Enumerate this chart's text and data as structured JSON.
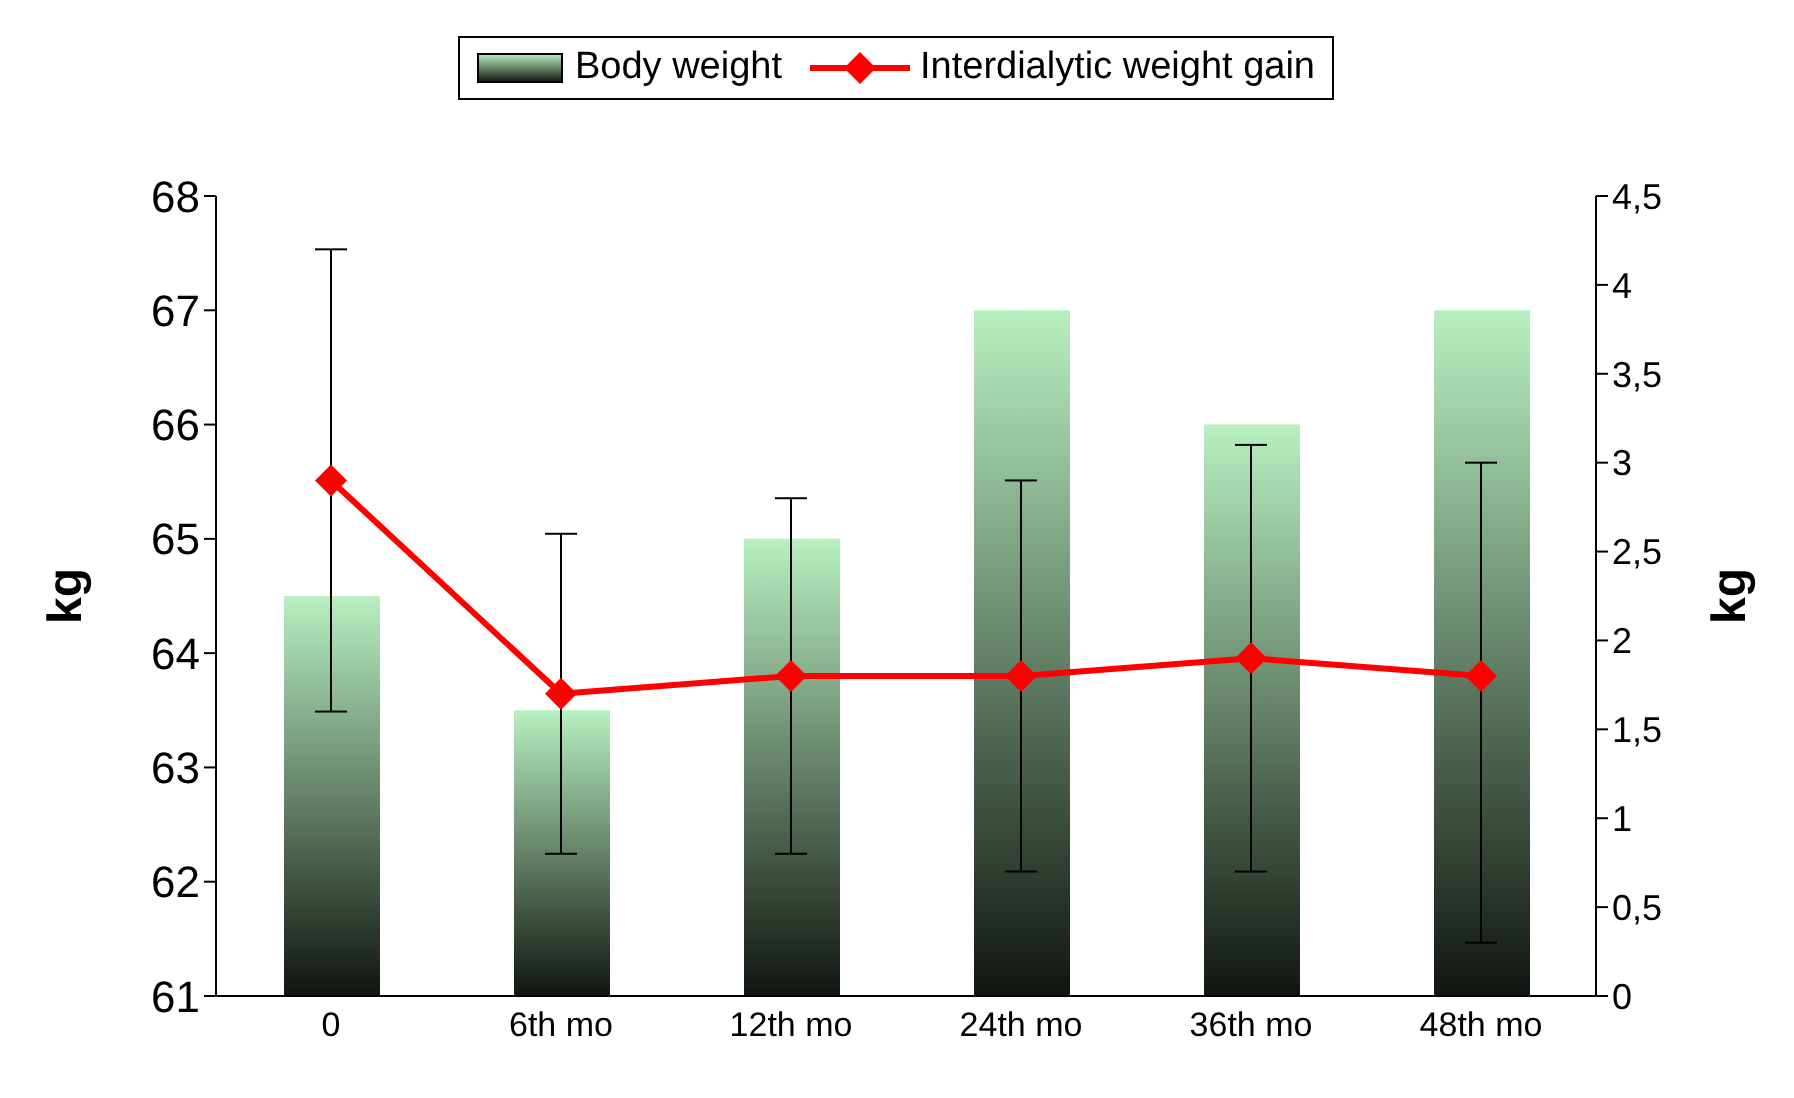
{
  "chart_data": {
    "type": "bar",
    "categories": [
      "0",
      "6th mo",
      "12th mo",
      "24th mo",
      "36th mo",
      "48th mo"
    ],
    "ylabel": "kg",
    "y2label": "kg",
    "ylim": [
      61,
      68
    ],
    "yticks": [
      61,
      62,
      63,
      64,
      65,
      66,
      67,
      68
    ],
    "y2lim": [
      0,
      4.5
    ],
    "y2ticks": [
      0,
      {
        "value": 0.5,
        "label": "0,5"
      },
      1,
      {
        "value": 1.5,
        "label": "1,5"
      },
      2,
      {
        "value": 2.5,
        "label": "2,5"
      },
      3,
      {
        "value": 3.5,
        "label": "3,5"
      },
      4,
      {
        "value": 4.5,
        "label": "4,5"
      }
    ],
    "legend": "top",
    "grid": false,
    "marker": "diamond",
    "series": [
      {
        "name": "Body weight",
        "color": "#b8f0c0",
        "values": [
          64.5,
          63.5,
          65,
          67,
          66,
          67
        ]
      },
      {
        "name": "Interdialytic weight gain",
        "type": "line",
        "axis": "y2",
        "color": "#ff0000",
        "values": [
          2.9,
          1.7,
          1.8,
          1.8,
          1.9,
          1.8
        ],
        "errors": [
          1.3,
          0.9,
          1.0,
          1.1,
          1.2,
          [
            0.3,
            3.0
          ]
        ]
      }
    ]
  }
}
